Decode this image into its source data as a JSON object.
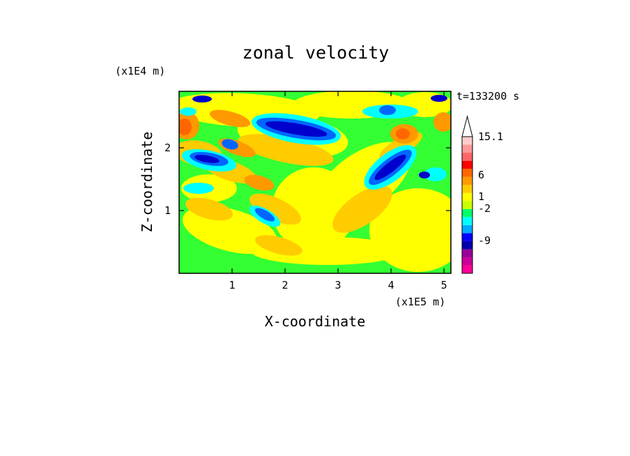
{
  "chart_data": {
    "type": "heatmap",
    "title": "zonal velocity",
    "xlabel": "X-coordinate",
    "ylabel": "Z-coordinate",
    "x_unit": "(x1E5 m)",
    "y_unit": "(x1E4 m)",
    "time_label": "t=133200 s",
    "xlim": [
      0,
      5.13
    ],
    "ylim": [
      0,
      2.9
    ],
    "xticks": [
      "1",
      "2",
      "3",
      "4",
      "5"
    ],
    "yticks": [
      "1",
      "2"
    ],
    "colorbar": {
      "levels_shown": [
        "15.1",
        "6",
        "1",
        "-2",
        "-9"
      ],
      "colors": [
        "#ff0099",
        "#cc0099",
        "#990099",
        "#0000aa",
        "#0000ff",
        "#00aaff",
        "#00ffff",
        "#00ff66",
        "#ccff00",
        "#ffff00",
        "#ffcc00",
        "#ff9900",
        "#ff6600",
        "#ff0000",
        "#ff6666",
        "#ff9999",
        "#ffcccc"
      ]
    },
    "field_palette": {
      "dark_blue": "#0000cc",
      "blue": "#0066ff",
      "cyan": "#00ffff",
      "green": "#33ff33",
      "yellow": "#ffff00",
      "gold": "#ffcc00",
      "orange": "#ff9900",
      "red_orange": "#ff6600"
    }
  }
}
